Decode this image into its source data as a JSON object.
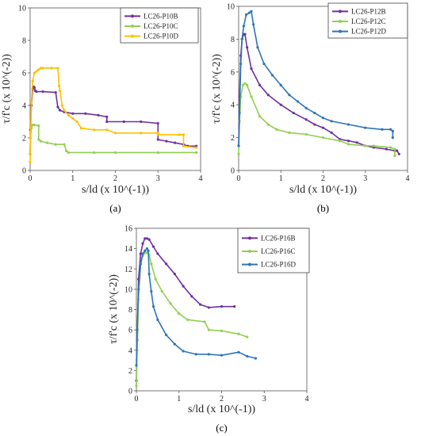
{
  "chart_data": [
    {
      "type": "line",
      "panel_label": "(a)",
      "xlabel": "s/ld (x 10^(-1))",
      "ylabel": "τ/f'c (x 10^(-2))",
      "xlim": [
        0,
        4
      ],
      "ylim": [
        0,
        10
      ],
      "xticks": [
        "0",
        "1",
        "2",
        "3",
        "4"
      ],
      "yticks": [
        "0",
        "2",
        "4",
        "6",
        "8",
        "10"
      ],
      "legend_position": "top-right",
      "series": [
        {
          "name": "LC26-P10B",
          "color": "#7030A0",
          "x": [
            0,
            0.01,
            0.03,
            0.06,
            0.08,
            0.1,
            0.12,
            0.15,
            0.3,
            0.6,
            0.65,
            0.7,
            0.8,
            1.0,
            1.3,
            1.6,
            1.8,
            1.8,
            2.2,
            2.6,
            3.0,
            3.0,
            3.2,
            3.4,
            3.6,
            3.7,
            3.9
          ],
          "y": [
            1.0,
            2.5,
            4.0,
            5.0,
            5.15,
            5.1,
            4.9,
            4.85,
            4.85,
            4.8,
            3.9,
            3.7,
            3.6,
            3.5,
            3.5,
            3.4,
            3.3,
            3.0,
            3.0,
            3.0,
            2.9,
            1.9,
            1.8,
            1.7,
            1.6,
            1.5,
            1.5
          ]
        },
        {
          "name": "LC26-P10C",
          "color": "#92D050",
          "x": [
            0,
            0.01,
            0.03,
            0.05,
            0.1,
            0.2,
            0.2,
            0.25,
            0.4,
            0.6,
            0.8,
            0.85,
            0.9,
            1.5,
            2.0,
            3.0,
            3.9
          ],
          "y": [
            1.0,
            2.0,
            2.6,
            2.8,
            2.8,
            2.75,
            1.9,
            1.8,
            1.7,
            1.6,
            1.6,
            1.2,
            1.1,
            1.1,
            1.1,
            1.1,
            1.1
          ]
        },
        {
          "name": "LC26-P10D",
          "color": "#FFC000",
          "x": [
            0,
            0.01,
            0.03,
            0.06,
            0.1,
            0.15,
            0.2,
            0.25,
            0.3,
            0.5,
            0.65,
            0.68,
            0.7,
            0.75,
            0.8,
            0.9,
            1.0,
            1.1,
            1.2,
            1.5,
            1.8,
            2.0,
            2.6,
            3.0,
            3.0,
            3.5,
            3.6,
            3.6,
            3.9
          ],
          "y": [
            0.5,
            2.0,
            4.2,
            5.5,
            6.0,
            6.1,
            6.2,
            6.3,
            6.3,
            6.3,
            6.3,
            5.2,
            4.9,
            4.0,
            3.7,
            3.4,
            3.2,
            3.0,
            2.6,
            2.5,
            2.5,
            2.3,
            2.3,
            2.3,
            2.2,
            2.2,
            2.2,
            1.5,
            1.4
          ]
        }
      ]
    },
    {
      "type": "line",
      "panel_label": "(b)",
      "xlabel": "s/ld (x 10^(-1))",
      "ylabel": "τ/f'c (x 10^(-2))",
      "xlim": [
        0,
        4
      ],
      "ylim": [
        0,
        10
      ],
      "xticks": [
        "0",
        "1",
        "2",
        "3",
        "4"
      ],
      "yticks": [
        "0",
        "2",
        "4",
        "6",
        "8",
        "10"
      ],
      "legend_position": "top-right",
      "series": [
        {
          "name": "LC26-P12B",
          "color": "#7030A0",
          "x": [
            0,
            0.02,
            0.05,
            0.08,
            0.12,
            0.15,
            0.2,
            0.3,
            0.5,
            0.7,
            1.0,
            1.3,
            1.6,
            1.8,
            2.0,
            2.2,
            2.4,
            2.6,
            2.8,
            3.0,
            3.2,
            3.5,
            3.7,
            3.75,
            3.8
          ],
          "y": [
            1.5,
            4.5,
            7.0,
            8.0,
            8.3,
            8.3,
            7.5,
            6.2,
            5.2,
            4.6,
            4.0,
            3.5,
            3.1,
            2.8,
            2.6,
            2.3,
            1.9,
            1.8,
            1.7,
            1.5,
            1.4,
            1.3,
            1.2,
            1.2,
            1.0
          ]
        },
        {
          "name": "LC26-P12C",
          "color": "#92D050",
          "x": [
            0,
            0.02,
            0.05,
            0.1,
            0.15,
            0.2,
            0.3,
            0.5,
            0.7,
            0.9,
            1.2,
            1.6,
            2.0,
            2.4,
            2.6,
            3.0,
            3.2,
            3.6,
            3.7,
            3.7
          ],
          "y": [
            1.0,
            3.0,
            4.5,
            5.2,
            5.3,
            5.2,
            4.5,
            3.3,
            2.8,
            2.5,
            2.3,
            2.2,
            2.0,
            1.8,
            1.6,
            1.5,
            1.5,
            1.4,
            1.3,
            0.9
          ]
        },
        {
          "name": "LC26-P12D",
          "color": "#2E75B6",
          "x": [
            0,
            0.02,
            0.05,
            0.08,
            0.12,
            0.18,
            0.25,
            0.3,
            0.35,
            0.45,
            0.6,
            0.8,
            1.0,
            1.2,
            1.4,
            1.6,
            1.8,
            2.0,
            2.2,
            2.6,
            3.0,
            3.4,
            3.6,
            3.65,
            3.65
          ],
          "y": [
            1.5,
            3.5,
            6.5,
            8.0,
            8.8,
            9.5,
            9.6,
            9.7,
            8.9,
            7.5,
            6.5,
            5.8,
            5.2,
            4.6,
            4.2,
            3.8,
            3.5,
            3.2,
            3.0,
            2.8,
            2.6,
            2.5,
            2.5,
            2.4,
            2.0
          ]
        }
      ]
    },
    {
      "type": "line",
      "panel_label": "(c)",
      "xlabel": "s/ld (x 10^(-1))",
      "ylabel": "τ/f'c (x 10^(-2))",
      "xlim": [
        0,
        4
      ],
      "ylim": [
        0,
        16
      ],
      "xticks": [
        "0",
        "1",
        "2",
        "3",
        "4"
      ],
      "yticks": [
        "0",
        "2",
        "4",
        "6",
        "8",
        "10",
        "12",
        "14",
        "16"
      ],
      "legend_position": "top-right",
      "series": [
        {
          "name": "LC26-P16B",
          "color": "#7030A0",
          "x": [
            0,
            0.02,
            0.05,
            0.1,
            0.15,
            0.2,
            0.25,
            0.3,
            0.4,
            0.5,
            0.7,
            0.9,
            1.1,
            1.3,
            1.5,
            1.7,
            2.0,
            2.3
          ],
          "y": [
            1.0,
            5.0,
            11.0,
            13.5,
            14.5,
            15.0,
            15.0,
            14.9,
            14.2,
            13.5,
            12.5,
            11.5,
            10.3,
            9.3,
            8.5,
            8.2,
            8.3,
            8.3
          ]
        },
        {
          "name": "LC26-P16C",
          "color": "#92D050",
          "x": [
            0,
            0.02,
            0.05,
            0.1,
            0.15,
            0.2,
            0.25,
            0.3,
            0.35,
            0.45,
            0.6,
            0.8,
            1.0,
            1.2,
            1.6,
            1.7,
            2.0,
            2.4,
            2.6
          ],
          "y": [
            0.5,
            4.0,
            9.0,
            12.5,
            13.3,
            13.6,
            13.6,
            13.4,
            12.5,
            11.0,
            9.8,
            8.6,
            7.6,
            7.0,
            6.8,
            6.0,
            5.9,
            5.6,
            5.3
          ]
        },
        {
          "name": "LC26-P16D",
          "color": "#2E75B6",
          "x": [
            0,
            0.02,
            0.05,
            0.1,
            0.15,
            0.2,
            0.25,
            0.28,
            0.3,
            0.35,
            0.4,
            0.5,
            0.7,
            0.9,
            1.1,
            1.4,
            1.7,
            2.0,
            2.4,
            2.6,
            2.8
          ],
          "y": [
            2.5,
            6.0,
            10.0,
            12.5,
            13.5,
            13.8,
            14.0,
            13.8,
            11.5,
            9.8,
            8.3,
            7.0,
            5.5,
            4.6,
            3.9,
            3.6,
            3.6,
            3.5,
            3.8,
            3.4,
            3.2
          ]
        }
      ]
    }
  ]
}
